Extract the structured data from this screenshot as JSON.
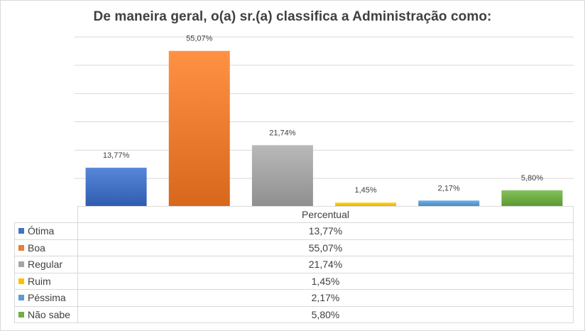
{
  "chart_data": {
    "type": "bar",
    "title": "De maneira geral, o(a) sr.(a) classifica a Administração como:",
    "series_name": "Percentual",
    "categories": [
      "Ótima",
      "Boa",
      "Regular",
      "Ruim",
      "Péssima",
      "Não sabe"
    ],
    "values": [
      13.77,
      55.07,
      21.74,
      1.45,
      2.17,
      5.8
    ],
    "value_labels": [
      "13,77%",
      "55,07%",
      "21,74%",
      "1,45%",
      "2,17%",
      "5,80%"
    ],
    "colors": [
      "#4472c4",
      "#ed7d31",
      "#a5a5a5",
      "#ffc000",
      "#5b9bd5",
      "#70ad47"
    ],
    "ylim": [
      0,
      60
    ],
    "grid": true,
    "legend": "data-table"
  }
}
